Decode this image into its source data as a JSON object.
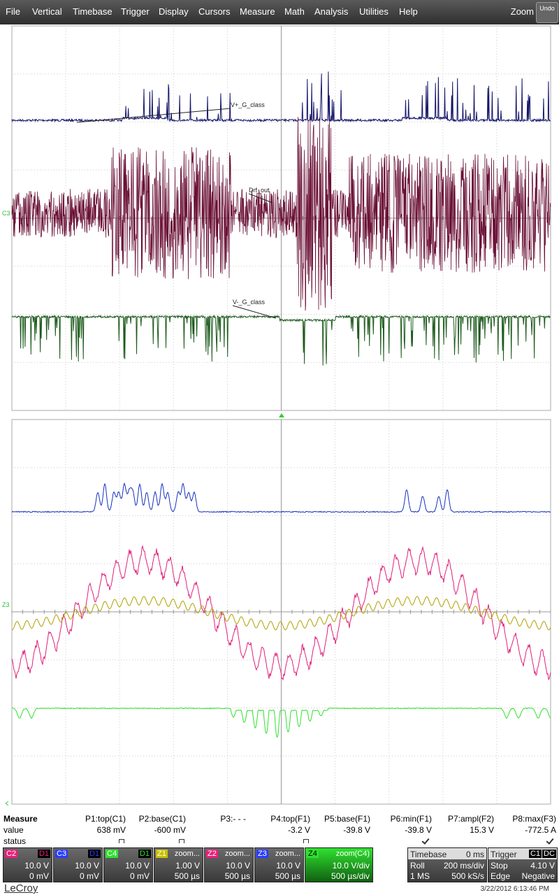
{
  "menu": [
    "File",
    "Vertical",
    "Timebase",
    "Trigger",
    "Display",
    "Cursors",
    "Measure",
    "Math",
    "Analysis",
    "Utilities",
    "Help"
  ],
  "zoom_label": "Zoom",
  "undo": "Undo",
  "trace_labels": [
    "V+_G_class",
    "Drf_out",
    "V-_G_class"
  ],
  "channel_markers": [
    "C3",
    "Z3"
  ],
  "measure": {
    "title": "Measure",
    "row_labels": [
      "value",
      "status"
    ],
    "params": [
      {
        "name": "P1:top(C1)",
        "value": "638 mV"
      },
      {
        "name": "P2:base(C1)",
        "value": "-600 mV"
      },
      {
        "name": "P3:- - -"
      },
      {
        "name": "P4:top(F1)",
        "value": "-3.2 V"
      },
      {
        "name": "P5:base(F1)",
        "value": "-39.8 V"
      },
      {
        "name": "P6:min(F1)",
        "value": "-39.8 V"
      },
      {
        "name": "P7:ampl(F2)",
        "value": "15.3 V"
      },
      {
        "name": "P8:max(F3)",
        "value": "-772.5 A"
      }
    ]
  },
  "channels": [
    {
      "name": "C2",
      "tag": "D1",
      "scale": "10.0 V",
      "offset": "0 mV",
      "color": "#e8207a"
    },
    {
      "name": "C3",
      "tag": "D1",
      "scale": "10.0 V",
      "offset": "0 mV",
      "color": "#2a3cff"
    },
    {
      "name": "C4",
      "tag": "D1",
      "scale": "10.0 V",
      "offset": "0 mV",
      "color": "#30e030"
    },
    {
      "name": "Z1",
      "tag": "zoom...",
      "scale": "1.00 V",
      "offset": "500 µs",
      "color": "#c8c000"
    },
    {
      "name": "Z2",
      "tag": "zoom...",
      "scale": "10.0 V",
      "offset": "500 µs",
      "color": "#e8207a"
    },
    {
      "name": "Z3",
      "tag": "zoom...",
      "scale": "10.0 V",
      "offset": "500 µs",
      "color": "#2a3cff"
    },
    {
      "name": "Z4",
      "tag": "zoom(C4)",
      "scale": "10.0 V/div",
      "offset": "500 µs/div",
      "color": "#30e030"
    }
  ],
  "timebase": {
    "title": "Timebase",
    "delay": "0 ms",
    "mode": "Roll",
    "rate": "200 ms/div",
    "samples": "1 MS",
    "sample_rate": "500 kS/s"
  },
  "trigger": {
    "title": "Trigger",
    "source": "C1",
    "coupling": "DC",
    "mode": "Stop",
    "level": "4.10 V",
    "type": "Edge",
    "slope": "Negative"
  },
  "brand": "LeCroy",
  "timestamp": "3/22/2012 6:13:46 PM"
}
